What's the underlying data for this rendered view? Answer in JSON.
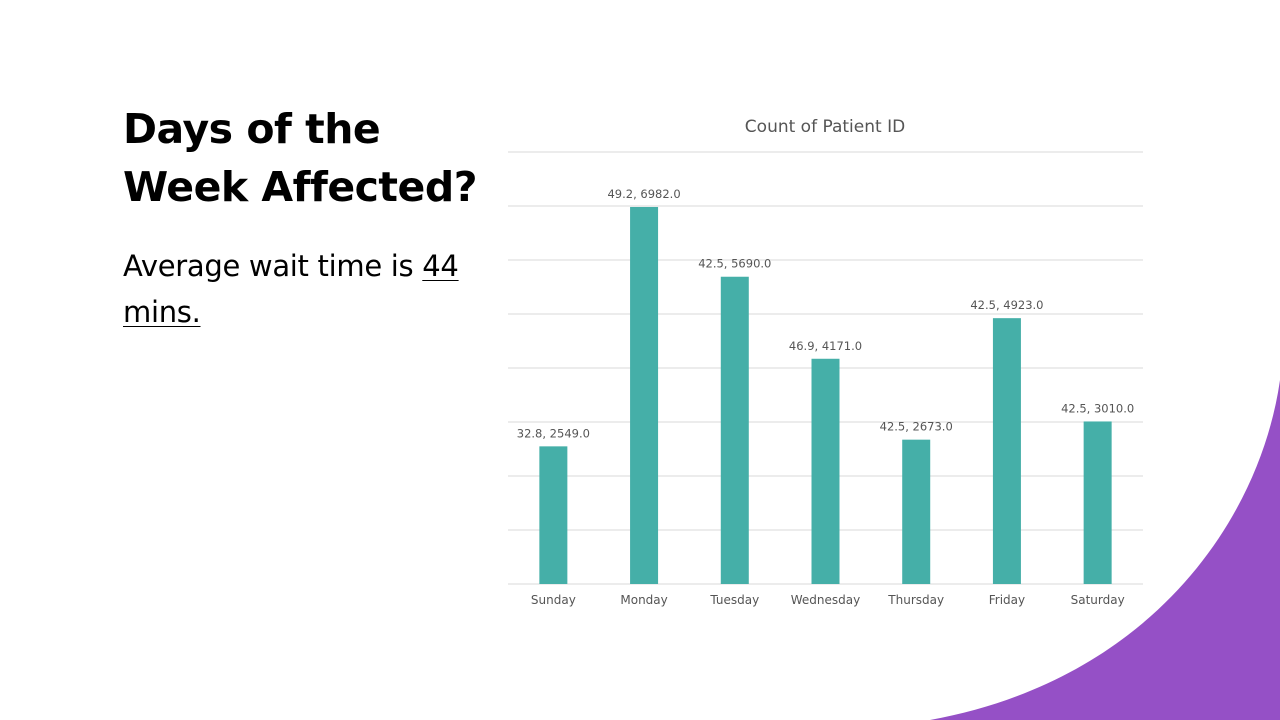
{
  "slide": {
    "title": "Days of the Week Affected?",
    "body_prefix": "Average wait time is",
    "body_highlight": "44 mins."
  },
  "colors": {
    "bar": "#45afa8",
    "accent_shape": "#9550c6",
    "gridline": "#d9d9d9"
  },
  "chart_data": {
    "type": "bar",
    "title": "Count of Patient ID",
    "categories": [
      "Sunday",
      "Monday",
      "Tuesday",
      "Wednesday",
      "Thursday",
      "Friday",
      "Saturday"
    ],
    "values": [
      2549.0,
      6982.0,
      5690.0,
      4171.0,
      2673.0,
      4923.0,
      3010.0
    ],
    "data_labels": [
      "32.8, 2549.0",
      "49.2, 6982.0",
      "42.5, 5690.0",
      "46.9, 4171.0",
      "42.5, 2673.0",
      "42.5, 4923.0",
      "42.5, 3010.0"
    ],
    "ylim": [
      0,
      8000
    ],
    "grid": true,
    "y_tick_labels_shown": false,
    "legend": "none"
  }
}
